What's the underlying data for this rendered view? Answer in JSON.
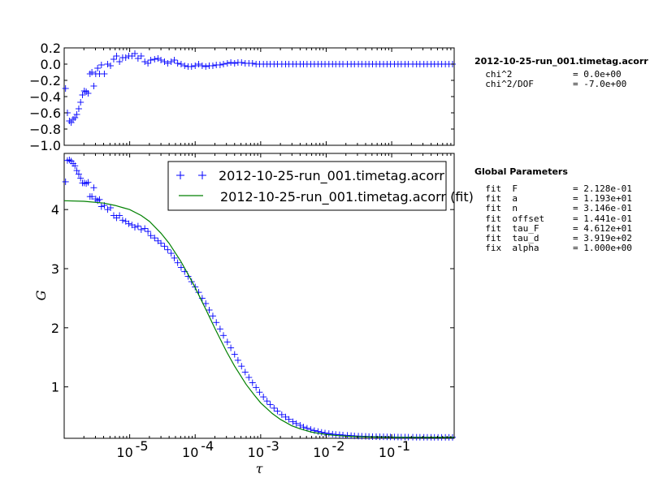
{
  "chart_data": [
    {
      "type": "scatter",
      "panel": "residuals",
      "xscale": "log",
      "xlim": [
        1e-06,
        0.9
      ],
      "ylim": [
        -1.0,
        0.2
      ],
      "yticks": [
        "0.2",
        "0.0",
        "−0.2",
        "−0.4",
        "−0.6",
        "−0.8",
        "−1.0"
      ],
      "ytick_values": [
        0.2,
        0.0,
        -0.2,
        -0.4,
        -0.6,
        -0.8,
        -1.0
      ],
      "series": [
        {
          "marker": "+",
          "color": "#0000ff",
          "x": [
            1.05e-06,
            1.12e-06,
            1.2e-06,
            1.28e-06,
            1.37e-06,
            1.46e-06,
            1.56e-06,
            1.67e-06,
            1.78e-06,
            1.9e-06,
            2.03e-06,
            2.17e-06,
            2.32e-06,
            2.48e-06,
            2.65e-06,
            2.83e-06,
            3.03e-06,
            3.24e-06,
            3.46e-06,
            3.7e-06,
            4.1e-06,
            4.6e-06,
            5.1e-06,
            5.7e-06,
            6.3e-06,
            7e-06,
            7.8e-06,
            8.7e-06,
            9.7e-06,
            1.08e-05,
            1.2e-05,
            1.34e-05,
            1.5e-05,
            1.7e-05,
            1.9e-05,
            2.1e-05,
            2.4e-05,
            2.7e-05,
            3e-05,
            3.4e-05,
            3.8e-05,
            4.3e-05,
            4.8e-05,
            5.4e-05,
            6.1e-05,
            6.9e-05,
            7.8e-05,
            8.8e-05,
            0.0001,
            0.000113,
            0.000128,
            0.000145,
            0.000164,
            0.000186,
            0.00021,
            0.00024,
            0.00027,
            0.00031,
            0.00035,
            0.0004,
            0.00045,
            0.00051,
            0.00058,
            0.00066,
            0.00075,
            0.00085,
            0.00096,
            0.0011,
            0.00125,
            0.0014,
            0.0016,
            0.0018,
            0.0021,
            0.0024,
            0.0027,
            0.0031,
            0.0035,
            0.004,
            0.0045,
            0.0051,
            0.0058,
            0.0066,
            0.0075,
            0.0085,
            0.0096,
            0.011,
            0.0125,
            0.014,
            0.016,
            0.018,
            0.021,
            0.024,
            0.027,
            0.031,
            0.035,
            0.04,
            0.045,
            0.051,
            0.058,
            0.066,
            0.075,
            0.085,
            0.096,
            0.11,
            0.125,
            0.14,
            0.16,
            0.18,
            0.21,
            0.24,
            0.27,
            0.31,
            0.35,
            0.4,
            0.45,
            0.51,
            0.58,
            0.66,
            0.75,
            0.85
          ],
          "y": [
            -0.3,
            -0.6,
            -0.7,
            -0.72,
            -0.68,
            -0.66,
            -0.62,
            -0.55,
            -0.47,
            -0.38,
            -0.33,
            -0.34,
            -0.36,
            -0.12,
            -0.1,
            -0.27,
            -0.12,
            -0.05,
            -0.12,
            -0.01,
            -0.12,
            0.0,
            -0.02,
            0.06,
            0.1,
            0.03,
            0.08,
            0.08,
            0.1,
            0.1,
            0.13,
            0.07,
            0.1,
            0.03,
            0.01,
            0.05,
            0.06,
            0.07,
            0.05,
            0.03,
            0.01,
            0.03,
            0.05,
            0.01,
            0.0,
            -0.02,
            -0.03,
            -0.03,
            -0.02,
            0.0,
            -0.02,
            -0.03,
            -0.02,
            -0.02,
            -0.01,
            -0.01,
            0.0,
            0.01,
            0.02,
            0.01,
            0.02,
            0.02,
            0.01,
            0.01,
            0.01,
            0.0,
            0.0,
            0.0,
            0.0,
            0.0,
            0.0,
            0.0,
            0.0,
            0.0,
            0.0,
            0.0,
            0.0,
            0.0,
            0.0,
            0.0,
            0.0,
            0.0,
            0.0,
            0.0,
            0.0,
            0.0,
            0.0,
            0.0,
            0.0,
            0.0,
            0.0,
            0.0,
            0.0,
            0.0,
            0.0,
            0.0,
            0.0,
            0.0,
            0.0,
            0.0,
            0.0,
            0.0,
            0.0,
            0.0,
            0.0,
            0.0,
            0.0,
            0.0,
            0.0,
            0.0,
            0.0,
            0.0,
            0.0,
            0.0,
            0.0,
            0.0,
            0.0,
            0.0,
            0.0,
            0.0
          ]
        }
      ]
    },
    {
      "type": "scatter",
      "panel": "autocorrelation",
      "xscale": "log",
      "xlim": [
        1e-06,
        0.9
      ],
      "ylim": [
        0.13,
        4.95
      ],
      "xlabel": "τ",
      "ylabel": "G",
      "xticks": [
        "10",
        "10",
        "10",
        "10",
        "10"
      ],
      "xtick_exponents": [
        "-5",
        "-4",
        "-3",
        "-2",
        "-1"
      ],
      "xtick_values": [
        1e-05,
        0.0001,
        0.001,
        0.01,
        0.1
      ],
      "yticks": [
        "1",
        "2",
        "3",
        "4"
      ],
      "ytick_values": [
        1,
        2,
        3,
        4
      ],
      "legend_position": "upper right",
      "series": [
        {
          "name": "2012-10-25-run_001.timetag.acorr",
          "marker": "+",
          "color": "#0000ff",
          "x": [
            1.05e-06,
            1.12e-06,
            1.2e-06,
            1.28e-06,
            1.37e-06,
            1.46e-06,
            1.56e-06,
            1.67e-06,
            1.78e-06,
            1.9e-06,
            2.03e-06,
            2.17e-06,
            2.32e-06,
            2.48e-06,
            2.65e-06,
            2.83e-06,
            3.03e-06,
            3.24e-06,
            3.46e-06,
            3.7e-06,
            4.1e-06,
            4.6e-06,
            5.1e-06,
            5.7e-06,
            6.3e-06,
            7e-06,
            7.8e-06,
            8.7e-06,
            9.7e-06,
            1.08e-05,
            1.2e-05,
            1.34e-05,
            1.5e-05,
            1.7e-05,
            1.9e-05,
            2.1e-05,
            2.4e-05,
            2.7e-05,
            3e-05,
            3.4e-05,
            3.8e-05,
            4.3e-05,
            4.8e-05,
            5.4e-05,
            6.1e-05,
            6.9e-05,
            7.8e-05,
            8.8e-05,
            0.0001,
            0.000113,
            0.000128,
            0.000145,
            0.000164,
            0.000186,
            0.00021,
            0.00024,
            0.00027,
            0.00031,
            0.00035,
            0.0004,
            0.00045,
            0.00051,
            0.00058,
            0.00066,
            0.00075,
            0.00085,
            0.00096,
            0.0011,
            0.00125,
            0.0014,
            0.0016,
            0.0018,
            0.0021,
            0.0024,
            0.0027,
            0.0031,
            0.0035,
            0.004,
            0.0045,
            0.0051,
            0.0058,
            0.0066,
            0.0075,
            0.0085,
            0.0096,
            0.011,
            0.0125,
            0.014,
            0.016,
            0.018,
            0.021,
            0.024,
            0.027,
            0.031,
            0.035,
            0.04,
            0.045,
            0.051,
            0.058,
            0.066,
            0.075,
            0.085,
            0.096,
            0.11,
            0.125,
            0.14,
            0.16,
            0.18,
            0.21,
            0.24,
            0.27,
            0.31,
            0.35,
            0.4,
            0.45,
            0.51,
            0.58,
            0.66,
            0.75,
            0.85
          ],
          "y": [
            4.47,
            4.83,
            4.84,
            4.82,
            4.78,
            4.74,
            4.66,
            4.6,
            4.53,
            4.45,
            4.45,
            4.44,
            4.46,
            4.22,
            4.22,
            4.37,
            4.18,
            4.15,
            4.17,
            4.05,
            4.07,
            4.0,
            4.03,
            3.9,
            3.86,
            3.9,
            3.82,
            3.8,
            3.76,
            3.74,
            3.7,
            3.72,
            3.66,
            3.68,
            3.63,
            3.56,
            3.52,
            3.47,
            3.43,
            3.38,
            3.32,
            3.26,
            3.18,
            3.1,
            3.02,
            2.95,
            2.87,
            2.78,
            2.69,
            2.6,
            2.5,
            2.41,
            2.3,
            2.2,
            2.09,
            1.98,
            1.87,
            1.76,
            1.66,
            1.55,
            1.45,
            1.35,
            1.25,
            1.16,
            1.07,
            0.99,
            0.91,
            0.83,
            0.76,
            0.7,
            0.64,
            0.59,
            0.53,
            0.49,
            0.45,
            0.41,
            0.38,
            0.35,
            0.32,
            0.3,
            0.28,
            0.26,
            0.245,
            0.23,
            0.22,
            0.21,
            0.2,
            0.195,
            0.19,
            0.185,
            0.18,
            0.175,
            0.17,
            0.167,
            0.165,
            0.162,
            0.16,
            0.158,
            0.157,
            0.156,
            0.155,
            0.154,
            0.153,
            0.152,
            0.151,
            0.15,
            0.15,
            0.149,
            0.149,
            0.148,
            0.148,
            0.147,
            0.147,
            0.147,
            0.146,
            0.146,
            0.146,
            0.146,
            0.146,
            0.146
          ]
        },
        {
          "name": "2012-10-25-run_001.timetag.acorr (fit)",
          "line": true,
          "color": "#008000",
          "x": [
            1e-06,
            2e-06,
            4e-06,
            6e-06,
            8e-06,
            1e-05,
            1.5e-05,
            2e-05,
            3e-05,
            4e-05,
            6e-05,
            8e-05,
            0.0001,
            0.00015,
            0.0002,
            0.0003,
            0.0004,
            0.0006,
            0.0008,
            0.001,
            0.0015,
            0.002,
            0.003,
            0.004,
            0.006,
            0.008,
            0.01,
            0.015,
            0.02,
            0.03,
            0.05,
            0.1,
            0.2,
            0.5,
            0.9
          ],
          "y": [
            4.15,
            4.14,
            4.11,
            4.07,
            4.03,
            4.0,
            3.9,
            3.8,
            3.6,
            3.43,
            3.13,
            2.88,
            2.68,
            2.28,
            1.99,
            1.6,
            1.35,
            1.04,
            0.86,
            0.73,
            0.55,
            0.45,
            0.34,
            0.29,
            0.235,
            0.21,
            0.195,
            0.175,
            0.166,
            0.158,
            0.152,
            0.148,
            0.146,
            0.145,
            0.145
          ]
        }
      ]
    }
  ],
  "side_panel": {
    "title": "2012-10-25-run_001.timetag.acorr",
    "stats": [
      {
        "key": "  chi^2",
        "value": "= 0.0e+00"
      },
      {
        "key": "  chi^2/DOF",
        "value": "= -7.0e+00"
      }
    ],
    "params_title": "Global Parameters",
    "params": [
      {
        "key": "  fit  F",
        "value": "= 2.128e-01"
      },
      {
        "key": "  fit  a",
        "value": "= 1.193e+01"
      },
      {
        "key": "  fit  n",
        "value": "= 3.146e-01"
      },
      {
        "key": "  fit  offset",
        "value": "= 1.441e-01"
      },
      {
        "key": "  fit  tau_F",
        "value": "= 4.612e+01"
      },
      {
        "key": "  fit  tau_d",
        "value": "= 3.919e+02"
      },
      {
        "key": "  fix  alpha",
        "value": "= 1.000e+00"
      }
    ]
  }
}
